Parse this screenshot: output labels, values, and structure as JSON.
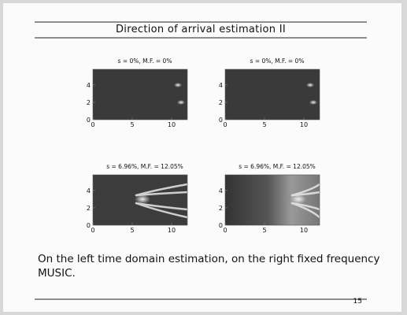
{
  "slide": {
    "title": "Direction of arrival estimation II",
    "panels": [
      {
        "title": "s = 0%, M.F. = 0%",
        "xlim": [
          0,
          12
        ],
        "ylim": [
          0,
          5.8
        ],
        "xticks": [
          0,
          5,
          10
        ],
        "yticks": [
          0,
          2,
          4
        ]
      },
      {
        "title": "s = 0%, M.F. = 0%",
        "xlim": [
          0,
          12
        ],
        "ylim": [
          0,
          5.8
        ],
        "xticks": [
          0,
          5,
          10
        ],
        "yticks": [
          0,
          2,
          4
        ]
      },
      {
        "title": "s = 6.96%, M.F. = 12.05%",
        "xlim": [
          0,
          12
        ],
        "ylim": [
          0,
          5.8
        ],
        "xticks": [
          0,
          5,
          10
        ],
        "yticks": [
          0,
          2,
          4
        ]
      },
      {
        "title": "s = 6.96%, M.F. = 12.05%",
        "xlim": [
          0,
          12
        ],
        "ylim": [
          0,
          5.8
        ],
        "xticks": [
          0,
          5,
          10
        ],
        "yticks": [
          0,
          2,
          4
        ]
      }
    ],
    "caption": "On the left time domain estimation, on the right fixed frequency MUSIC.",
    "page_number": "15"
  }
}
